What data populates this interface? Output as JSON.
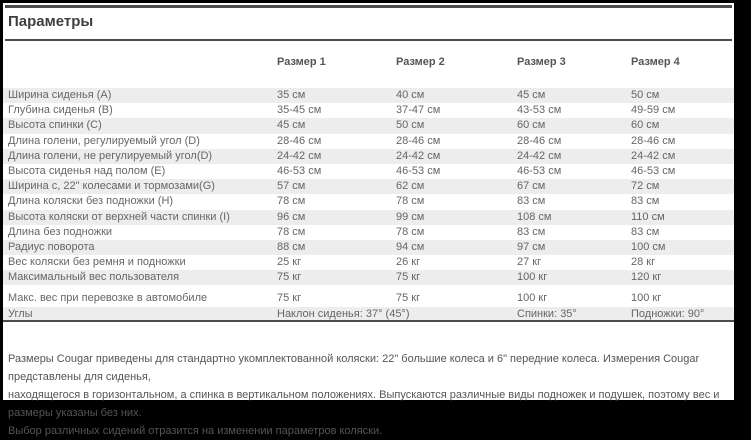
{
  "page": {
    "title": "Параметры"
  },
  "colors": {
    "rule": "#4d4d4d",
    "stripe": "#ededed",
    "body_text": "#666666",
    "frame": "#000000"
  },
  "table": {
    "size_headers": [
      "Размер 1",
      "Размер 2",
      "Размер 3",
      "Размер 4"
    ],
    "rows": [
      {
        "label": "Ширина сиденья (A)",
        "values": [
          "35 см",
          "40 см",
          "45 см",
          "50 см"
        ]
      },
      {
        "label": "Глубина сиденья (B)",
        "values": [
          "35-45 см",
          "37-47 см",
          "43-53 см",
          "49-59 см"
        ]
      },
      {
        "label": "Высота спинки (C)",
        "values": [
          "45 см",
          "50 см",
          "60 см",
          "60 см"
        ]
      },
      {
        "label": "Длина голени, регулируемый угол (D)",
        "values": [
          "28-46 см",
          "28-46 см",
          "28-46 см",
          "28-46 см"
        ]
      },
      {
        "label": "Длина голени, не регулируемый угол(D)",
        "values": [
          "24-42 см",
          "24-42 см",
          "24-42 см",
          "24-42 см"
        ]
      },
      {
        "label": "Высота сиденья над полом (E)",
        "values": [
          "46-53 см",
          "46-53 см",
          "46-53 см",
          "46-53 см"
        ]
      },
      {
        "label": "Ширина с, 22\" колесами и тормозами(G)",
        "values": [
          "57 см",
          "62 см",
          "67 см",
          "72 см"
        ]
      },
      {
        "label": "Длина коляски без подножки (H)",
        "values": [
          "78 см",
          "78 см",
          "83 см",
          "83 см"
        ]
      },
      {
        "label": "Высота коляски от верхней части спинки (I)",
        "values": [
          "96 см",
          "99 см",
          "108 см",
          "110 см"
        ]
      },
      {
        "label": "Длина без подножки",
        "values": [
          "78 см",
          "78 см",
          "83 см",
          "83 см"
        ]
      },
      {
        "label": "Радиус поворота",
        "values": [
          "88 см",
          "94 см",
          "97 см",
          "100 см"
        ]
      },
      {
        "label": "Вес коляски без ремня и подножки",
        "values": [
          "25 кг",
          "26 кг",
          "27 кг",
          "28 кг"
        ]
      },
      {
        "label": "Максимальный вес пользователя",
        "values": [
          "75 кг",
          "75 кг",
          "100 кг",
          "120 кг"
        ]
      },
      {
        "label": "Макс. вес при перевозке в автомобиле",
        "values": [
          "75 кг",
          "75 кг",
          "100 кг",
          "100 кг"
        ]
      },
      {
        "label": "Углы",
        "values": [
          "Наклон сиденья: 37° (45°)",
          "",
          "Спинки: 35°",
          "Подножки: 90°"
        ]
      }
    ]
  },
  "footer": {
    "lines": [
      "Размеры Cougar приведены для стандартно укомплектованной коляски: 22\" большие колеса и 6\" передние колеса. Измерения Cougar представлены для сиденья,",
      "находящегося в горизонтальном, а спинка в вертикальном положениях. Выпускаются различные виды подножек и подушек, поэтому вес и размеры указаны без них.",
      "Выбор различных сидений отразится на изменении параметров коляски."
    ]
  }
}
